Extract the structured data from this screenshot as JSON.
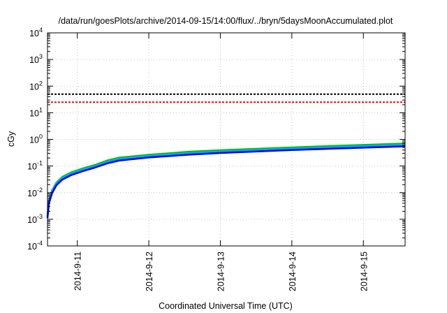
{
  "chart_data": {
    "type": "line",
    "title": "/data/run/goesPlots/archive/2014-09-15/14:00/flux/../bryn/5daysMoonAccumulated.plot",
    "xlabel": "Coordinated Universal Time (UTC)",
    "ylabel": "cGy",
    "y_scale": "log",
    "ylim": [
      0.0001,
      10000
    ],
    "xlim": [
      "2014-09-10 14:00",
      "2014-09-15 14:00"
    ],
    "grid": true,
    "x_ticks": [
      "2014-9-11",
      "2014-9-12",
      "2014-9-13",
      "2014-9-14",
      "2014-9-15"
    ],
    "y_ticks": [
      {
        "base": "10",
        "exp": "4",
        "value": 10000
      },
      {
        "base": "10",
        "exp": "3",
        "value": 1000
      },
      {
        "base": "10",
        "exp": "2",
        "value": 100
      },
      {
        "base": "10",
        "exp": "1",
        "value": 10
      },
      {
        "base": "10",
        "exp": "0",
        "value": 1
      },
      {
        "base": "10",
        "exp": "-1",
        "value": 0.1
      },
      {
        "base": "10",
        "exp": "-2",
        "value": 0.01
      },
      {
        "base": "10",
        "exp": "-3",
        "value": 0.001
      },
      {
        "base": "10",
        "exp": "-4",
        "value": 0.0001
      }
    ],
    "reference_lines": [
      {
        "value": 50,
        "color": "#000000",
        "style": "dashed"
      },
      {
        "value": 25,
        "color": "#ff0000",
        "style": "dashed"
      }
    ],
    "series": [
      {
        "color": "#00c000",
        "x": [
          "2014-09-10 14:00",
          "2014-09-10 14:30",
          "2014-09-10 15:30",
          "2014-09-10 17:00",
          "2014-09-10 19:00",
          "2014-09-10 22:00",
          "2014-09-11 02:00",
          "2014-09-11 06:00",
          "2014-09-11 10:00",
          "2014-09-11 14:00",
          "2014-09-12 00:00",
          "2014-09-12 14:00",
          "2014-09-13 00:00",
          "2014-09-13 14:00",
          "2014-09-14 00:00",
          "2014-09-14 14:00",
          "2014-09-15 00:00",
          "2014-09-15 14:00"
        ],
        "y": [
          0.0015,
          0.005,
          0.012,
          0.024,
          0.039,
          0.058,
          0.082,
          0.11,
          0.16,
          0.205,
          0.265,
          0.345,
          0.39,
          0.45,
          0.5,
          0.57,
          0.62,
          0.7
        ]
      },
      {
        "color": "#00b0e0",
        "x": [
          "2014-09-10 14:00",
          "2014-09-10 14:30",
          "2014-09-10 15:30",
          "2014-09-10 17:00",
          "2014-09-10 19:00",
          "2014-09-10 22:00",
          "2014-09-11 02:00",
          "2014-09-11 06:00",
          "2014-09-11 10:00",
          "2014-09-11 14:00",
          "2014-09-12 00:00",
          "2014-09-12 14:00",
          "2014-09-13 00:00",
          "2014-09-13 14:00",
          "2014-09-14 00:00",
          "2014-09-14 14:00",
          "2014-09-15 00:00",
          "2014-09-15 14:00"
        ],
        "y": [
          0.0013,
          0.0045,
          0.011,
          0.022,
          0.036,
          0.053,
          0.075,
          0.1,
          0.145,
          0.185,
          0.24,
          0.31,
          0.35,
          0.41,
          0.45,
          0.515,
          0.56,
          0.63
        ]
      },
      {
        "color": "#0000ff",
        "x": [
          "2014-09-10 14:00",
          "2014-09-10 14:30",
          "2014-09-10 15:30",
          "2014-09-10 17:00",
          "2014-09-10 19:00",
          "2014-09-10 22:00",
          "2014-09-11 02:00",
          "2014-09-11 06:00",
          "2014-09-11 10:00",
          "2014-09-11 14:00",
          "2014-09-12 00:00",
          "2014-09-12 14:00",
          "2014-09-13 00:00",
          "2014-09-13 14:00",
          "2014-09-14 00:00",
          "2014-09-14 14:00",
          "2014-09-15 00:00",
          "2014-09-15 14:00"
        ],
        "y": [
          0.0011,
          0.004,
          0.0095,
          0.019,
          0.031,
          0.046,
          0.065,
          0.088,
          0.125,
          0.16,
          0.21,
          0.27,
          0.31,
          0.36,
          0.4,
          0.45,
          0.49,
          0.55
        ]
      }
    ]
  }
}
